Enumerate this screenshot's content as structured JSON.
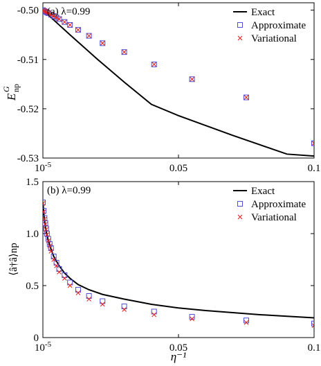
{
  "chart_data": [
    {
      "type": "line",
      "panel_label": "(a) λ=0.99",
      "ylabel": "E_np^G",
      "xlabel": "",
      "xlim": [
        0,
        0.1
      ],
      "ylim": [
        -0.53,
        -0.4985
      ],
      "x_ticks": [
        {
          "value": 0.0,
          "label": "10^-5"
        },
        {
          "value": 0.05,
          "label": "0.05"
        },
        {
          "value": 0.1,
          "label": "0.1"
        }
      ],
      "y_ticks": [
        {
          "value": -0.5,
          "label": "-0.50"
        },
        {
          "value": -0.51,
          "label": "-0.51"
        },
        {
          "value": -0.52,
          "label": "-0.52"
        },
        {
          "value": -0.53,
          "label": "-0.53"
        }
      ],
      "legend_position": "top-right",
      "series": [
        {
          "name": "Exact",
          "style": "line",
          "color": "#000000",
          "x": [
            0,
            0.005,
            0.01,
            0.02,
            0.03,
            0.04,
            0.05,
            0.06,
            0.07,
            0.08,
            0.09,
            0.1
          ],
          "y": [
            -0.5,
            -0.5025,
            -0.505,
            -0.5099,
            -0.5146,
            -0.5191,
            -0.5214,
            -0.5234,
            -0.5254,
            -0.5273,
            -0.5292,
            -0.5296
          ]
        },
        {
          "name": "Approximate",
          "style": "square",
          "color": "#4f4fd6",
          "x": [
            0.0,
            0.0005,
            0.001,
            0.0015,
            0.002,
            0.003,
            0.004,
            0.005,
            0.006,
            0.008,
            0.01,
            0.013,
            0.017,
            0.022,
            0.03,
            0.041,
            0.055,
            0.075,
            0.1
          ],
          "y": [
            -0.5,
            -0.50015,
            -0.5003,
            -0.50045,
            -0.5006,
            -0.5009,
            -0.5012,
            -0.5015,
            -0.5018,
            -0.5024,
            -0.503,
            -0.504,
            -0.5052,
            -0.5067,
            -0.5085,
            -0.511,
            -0.514,
            -0.5177,
            -0.527
          ]
        },
        {
          "name": "Variational",
          "style": "cross",
          "color": "#e02424",
          "x": [
            0.0,
            0.0005,
            0.001,
            0.0015,
            0.002,
            0.003,
            0.004,
            0.005,
            0.006,
            0.008,
            0.01,
            0.013,
            0.017,
            0.022,
            0.03,
            0.041,
            0.055,
            0.075,
            0.1
          ],
          "y": [
            -0.5,
            -0.50015,
            -0.5003,
            -0.50045,
            -0.5006,
            -0.5009,
            -0.5012,
            -0.5015,
            -0.5018,
            -0.5024,
            -0.503,
            -0.504,
            -0.5052,
            -0.5067,
            -0.5085,
            -0.511,
            -0.514,
            -0.5177,
            -0.527
          ]
        }
      ]
    },
    {
      "type": "line",
      "panel_label": "(b) λ=0.99",
      "ylabel": "⟨â†â⟩np",
      "xlabel": "η⁻¹",
      "xlim": [
        0,
        0.1
      ],
      "ylim": [
        0,
        1.5
      ],
      "x_ticks": [
        {
          "value": 0.0,
          "label": "10^-5"
        },
        {
          "value": 0.05,
          "label": "0.05"
        },
        {
          "value": 0.1,
          "label": "0.1"
        }
      ],
      "y_ticks": [
        {
          "value": 0,
          "label": "0"
        },
        {
          "value": 0.5,
          "label": "0.5"
        },
        {
          "value": 1.0,
          "label": "1.0"
        },
        {
          "value": 1.5,
          "label": "1.5"
        }
      ],
      "legend_position": "top-right",
      "series": [
        {
          "name": "Exact",
          "style": "line",
          "color": "#000000",
          "x": [
            0.0,
            0.0005,
            0.001,
            0.002,
            0.003,
            0.004,
            0.006,
            0.008,
            0.01,
            0.013,
            0.017,
            0.022,
            0.03,
            0.04,
            0.05,
            0.06,
            0.07,
            0.08,
            0.09,
            0.1
          ],
          "y": [
            1.3,
            1.15,
            1.05,
            0.93,
            0.85,
            0.78,
            0.69,
            0.62,
            0.57,
            0.51,
            0.46,
            0.415,
            0.37,
            0.32,
            0.285,
            0.26,
            0.24,
            0.22,
            0.205,
            0.19
          ]
        },
        {
          "name": "Approximate",
          "style": "square",
          "color": "#4f4fd6",
          "x": [
            0.0,
            0.0003,
            0.0006,
            0.0009,
            0.0012,
            0.0015,
            0.002,
            0.0025,
            0.003,
            0.004,
            0.005,
            0.006,
            0.008,
            0.01,
            0.013,
            0.017,
            0.022,
            0.03,
            0.041,
            0.055,
            0.075,
            0.1
          ],
          "y": [
            1.3,
            1.22,
            1.15,
            1.1,
            1.05,
            1.0,
            0.95,
            0.9,
            0.86,
            0.78,
            0.72,
            0.66,
            0.6,
            0.53,
            0.46,
            0.4,
            0.35,
            0.3,
            0.25,
            0.2,
            0.165,
            0.135
          ]
        },
        {
          "name": "Variational",
          "style": "cross",
          "color": "#e02424",
          "x": [
            0.0,
            0.0003,
            0.0006,
            0.0009,
            0.0012,
            0.0015,
            0.002,
            0.0025,
            0.003,
            0.004,
            0.005,
            0.006,
            0.008,
            0.01,
            0.013,
            0.017,
            0.022,
            0.03,
            0.041,
            0.055,
            0.075,
            0.1
          ],
          "y": [
            1.29,
            1.21,
            1.14,
            1.09,
            1.04,
            0.99,
            0.93,
            0.88,
            0.83,
            0.75,
            0.69,
            0.63,
            0.57,
            0.5,
            0.43,
            0.37,
            0.32,
            0.27,
            0.22,
            0.18,
            0.145,
            0.115
          ]
        }
      ]
    }
  ]
}
